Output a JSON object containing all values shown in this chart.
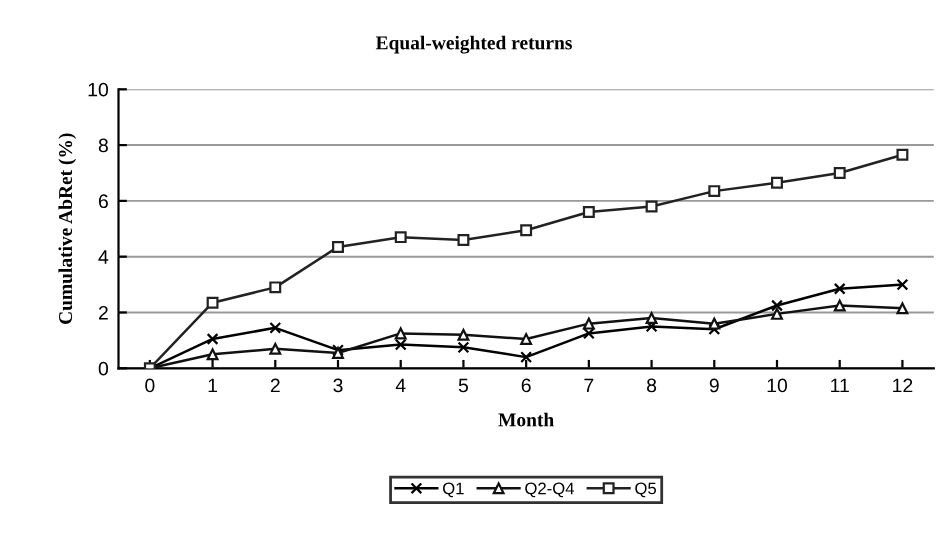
{
  "chart_data": {
    "type": "line",
    "title": "Equal-weighted returns",
    "xlabel": "Month",
    "ylabel": "Cumulative AbRet (%)",
    "categories": [
      "0",
      "1",
      "2",
      "3",
      "4",
      "5",
      "6",
      "7",
      "8",
      "9",
      "10",
      "11",
      "12"
    ],
    "series": [
      {
        "name": "Q1",
        "color": "#000000",
        "marker": "cross",
        "values": [
          0,
          1.05,
          1.45,
          0.65,
          0.85,
          0.75,
          0.4,
          1.25,
          1.5,
          1.4,
          2.25,
          2.85,
          3.0
        ]
      },
      {
        "name": "Q2-Q4",
        "color": "#111111",
        "marker": "triangle",
        "values": [
          0,
          0.5,
          0.7,
          0.55,
          1.25,
          1.2,
          1.05,
          1.6,
          1.8,
          1.6,
          1.95,
          2.25,
          2.15
        ]
      },
      {
        "name": "Q5",
        "color": "#222222",
        "marker": "square",
        "values": [
          0,
          2.35,
          2.9,
          4.35,
          4.7,
          4.6,
          4.95,
          5.6,
          5.8,
          6.35,
          6.65,
          7.0,
          7.65
        ]
      }
    ],
    "ylim": [
      0,
      10
    ],
    "yticks": [
      0,
      2,
      4,
      6,
      8,
      10
    ],
    "grid": "y",
    "legend": "bottom",
    "line_style": "solid"
  }
}
